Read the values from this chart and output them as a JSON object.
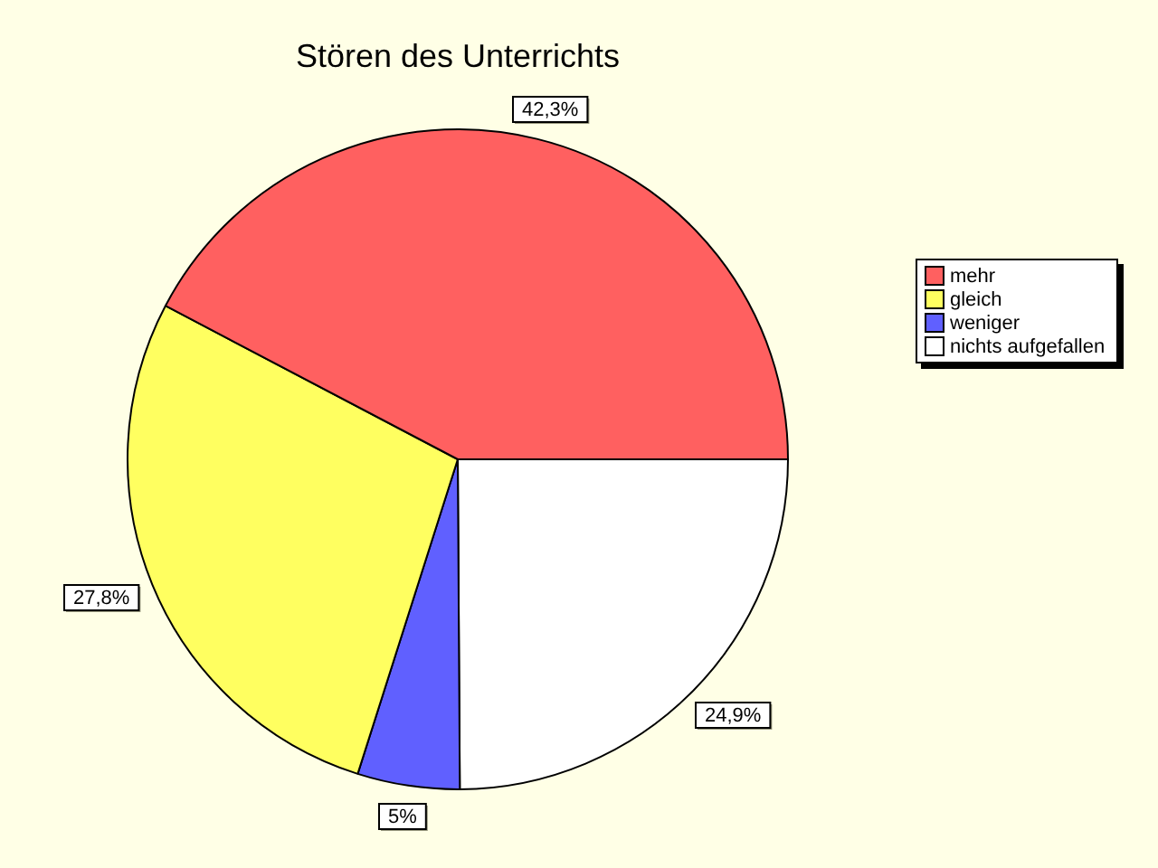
{
  "chart_data": {
    "type": "pie",
    "title": "Stören des Unterrichts",
    "categories": [
      "mehr",
      "gleich",
      "weniger",
      "nichts aufgefallen"
    ],
    "values": [
      42.3,
      27.8,
      5,
      24.9
    ],
    "colors": [
      "#ff6060",
      "#ffff60",
      "#6060ff",
      "#ffffff"
    ],
    "value_labels": [
      "42,3%",
      "27,8%",
      "5%",
      "24,9%"
    ],
    "legend": "right"
  }
}
